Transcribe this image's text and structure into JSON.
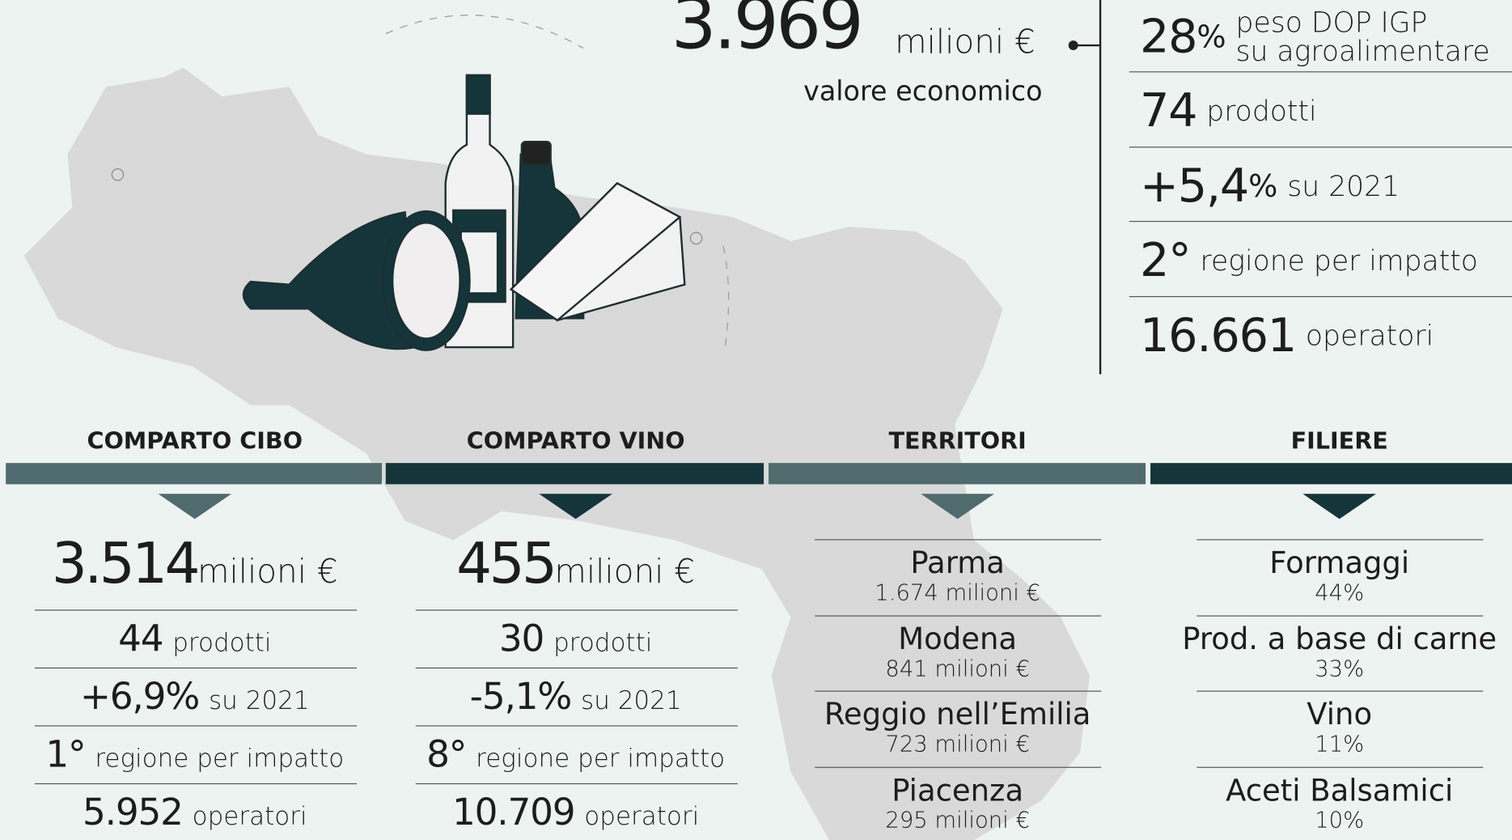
{
  "header": {
    "value": "3.969",
    "unit": "milioni €",
    "label": "valore economico"
  },
  "stats": [
    {
      "value": "28",
      "unit": "%",
      "label": [
        "peso DOP IGP",
        "su agroalimentare"
      ]
    },
    {
      "value": "74",
      "label": "prodotti"
    },
    {
      "value": "+5,4",
      "unit": "%",
      "label": "su 2021"
    },
    {
      "value": "2°",
      "label": "regione per impatto"
    },
    {
      "value": "16.661",
      "label": "operatori"
    }
  ],
  "sections": [
    {
      "title": "COMPARTO CIBO",
      "value": "3.514",
      "unit": "milioni €",
      "rows": [
        {
          "value": "44",
          "label": "prodotti"
        },
        {
          "value": "+6,9%",
          "label": "su 2021"
        },
        {
          "value": "1°",
          "label": "regione per impatto"
        },
        {
          "value": "5.952",
          "label": "operatori"
        }
      ]
    },
    {
      "title": "COMPARTO VINO",
      "value": "455",
      "unit": "milioni €",
      "rows": [
        {
          "value": "30",
          "label": "prodotti"
        },
        {
          "value": "-5,1%",
          "label": "su 2021"
        },
        {
          "value": "8°",
          "label": "regione per impatto"
        },
        {
          "value": "10.709",
          "label": "operatori"
        }
      ]
    },
    {
      "title": "TERRITORI",
      "items": [
        {
          "name": "Parma",
          "value": "1.674 milioni €"
        },
        {
          "name": "Modena",
          "value": "841 milioni €"
        },
        {
          "name": "Reggio nell’Emilia",
          "value": "723 milioni €"
        },
        {
          "name": "Piacenza",
          "value": "295 milioni €"
        }
      ]
    },
    {
      "title": "FILIERE",
      "items": [
        {
          "name": "Formaggi",
          "value": "44%"
        },
        {
          "name": "Prod. a base di carne",
          "value": "33%"
        },
        {
          "name": "Vino",
          "value": "11%"
        },
        {
          "name": "Aceti Balsamici",
          "value": "10%"
        }
      ]
    }
  ]
}
